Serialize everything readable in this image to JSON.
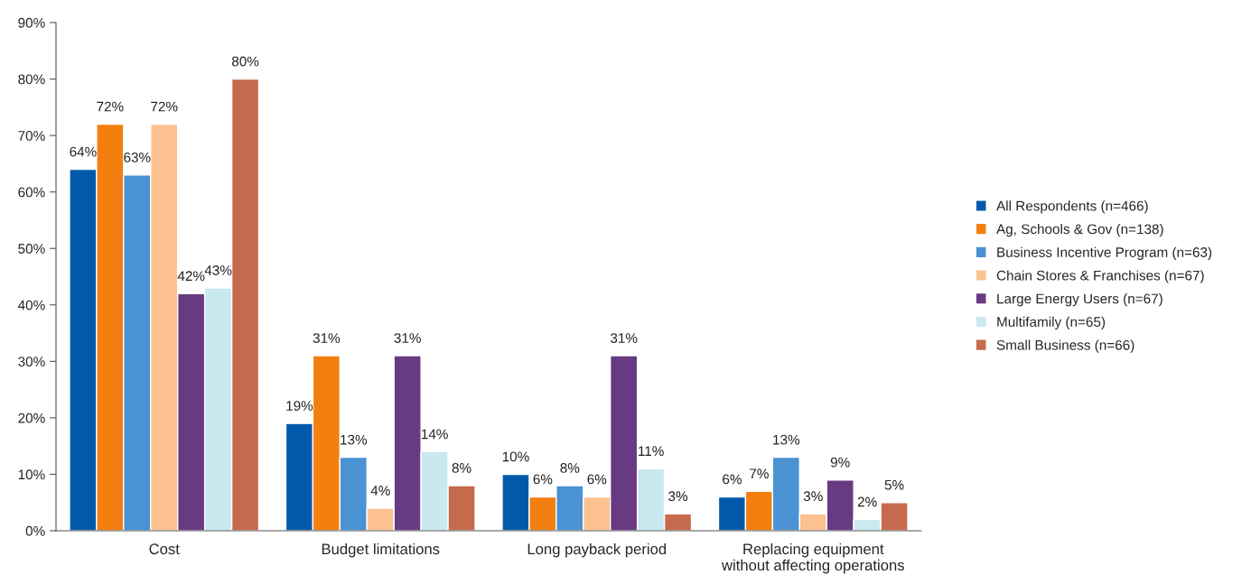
{
  "chart_data": {
    "type": "bar",
    "categories": [
      "Cost",
      "Budget limitations",
      "Long payback period",
      "Replacing equipment\nwithout affecting operations"
    ],
    "series": [
      {
        "name": "All Respondents (n=466)",
        "color": "#005aa9",
        "values": [
          64,
          19,
          10,
          6
        ],
        "value_labels": [
          "64%",
          "19%",
          "10%",
          "6%"
        ]
      },
      {
        "name": "Ag, Schools & Gov (n=138)",
        "color": "#f27f10",
        "values": [
          72,
          31,
          6,
          7
        ],
        "value_labels": [
          "72%",
          "31%",
          "6%",
          "7%"
        ]
      },
      {
        "name": "Business Incentive Program (n=63)",
        "color": "#4a92d2",
        "values": [
          63,
          13,
          8,
          13
        ],
        "value_labels": [
          "63%",
          "13%",
          "8%",
          "13%"
        ]
      },
      {
        "name": "Chain Stores & Franchises (n=67)",
        "color": "#fbc18f",
        "values": [
          72,
          4,
          6,
          3
        ],
        "value_labels": [
          "72%",
          "4%",
          "6%",
          "3%"
        ]
      },
      {
        "name": "Large Energy Users (n=67)",
        "color": "#683a82",
        "values": [
          42,
          31,
          31,
          9
        ],
        "value_labels": [
          "42%",
          "31%",
          "31%",
          "9%"
        ]
      },
      {
        "name": "Multifamily (n=65)",
        "color": "#c9e8f0",
        "values": [
          43,
          14,
          11,
          2
        ],
        "value_labels": [
          "43%",
          "14%",
          "11%",
          "2%"
        ]
      },
      {
        "name": "Small Business (n=66)",
        "color": "#c66a4e",
        "values": [
          80,
          8,
          3,
          5
        ],
        "value_labels": [
          "80%",
          "8%",
          "3%",
          "5%"
        ]
      }
    ],
    "ylim": [
      0,
      90
    ],
    "yticks": [
      {
        "value": 0,
        "label": "0%"
      },
      {
        "value": 10,
        "label": "10%"
      },
      {
        "value": 20,
        "label": "20%"
      },
      {
        "value": 30,
        "label": "30%"
      },
      {
        "value": 40,
        "label": "40%"
      },
      {
        "value": 50,
        "label": "50%"
      },
      {
        "value": 60,
        "label": "60%"
      },
      {
        "value": 70,
        "label": "70%"
      },
      {
        "value": 80,
        "label": "80%"
      },
      {
        "value": 90,
        "label": "90%"
      }
    ],
    "grid": false,
    "legend": "right"
  }
}
